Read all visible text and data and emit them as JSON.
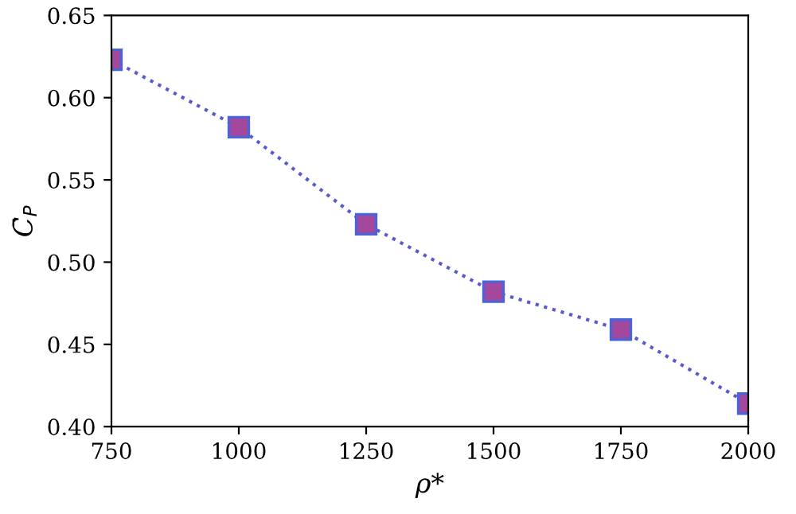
{
  "chart_data": {
    "type": "line",
    "xlabel": "ρ*",
    "ylabel": "C̄$_{P}$",
    "x": [
      750,
      1000,
      1250,
      1500,
      1750,
      2000
    ],
    "series": [
      {
        "color": "#a4489e",
        "values": [
          0.623,
          0.582,
          0.523,
          0.482,
          0.459,
          0.414
        ]
      }
    ],
    "marker": "square",
    "line_style": "dotted",
    "grid": false,
    "xlim": [
      750,
      2000
    ],
    "xticks": [
      750,
      1000,
      1250,
      1500,
      1750,
      2000
    ],
    "ylim": [
      0.4,
      0.65
    ],
    "yticks": [
      {
        "value": 0.4,
        "label": "0.40"
      },
      {
        "value": 0.45,
        "label": "0.45"
      },
      {
        "value": 0.5,
        "label": "0.50"
      },
      {
        "value": 0.55,
        "label": "0.55"
      },
      {
        "value": 0.6,
        "label": "0.60"
      },
      {
        "value": 0.65,
        "label": "0.65"
      }
    ]
  }
}
